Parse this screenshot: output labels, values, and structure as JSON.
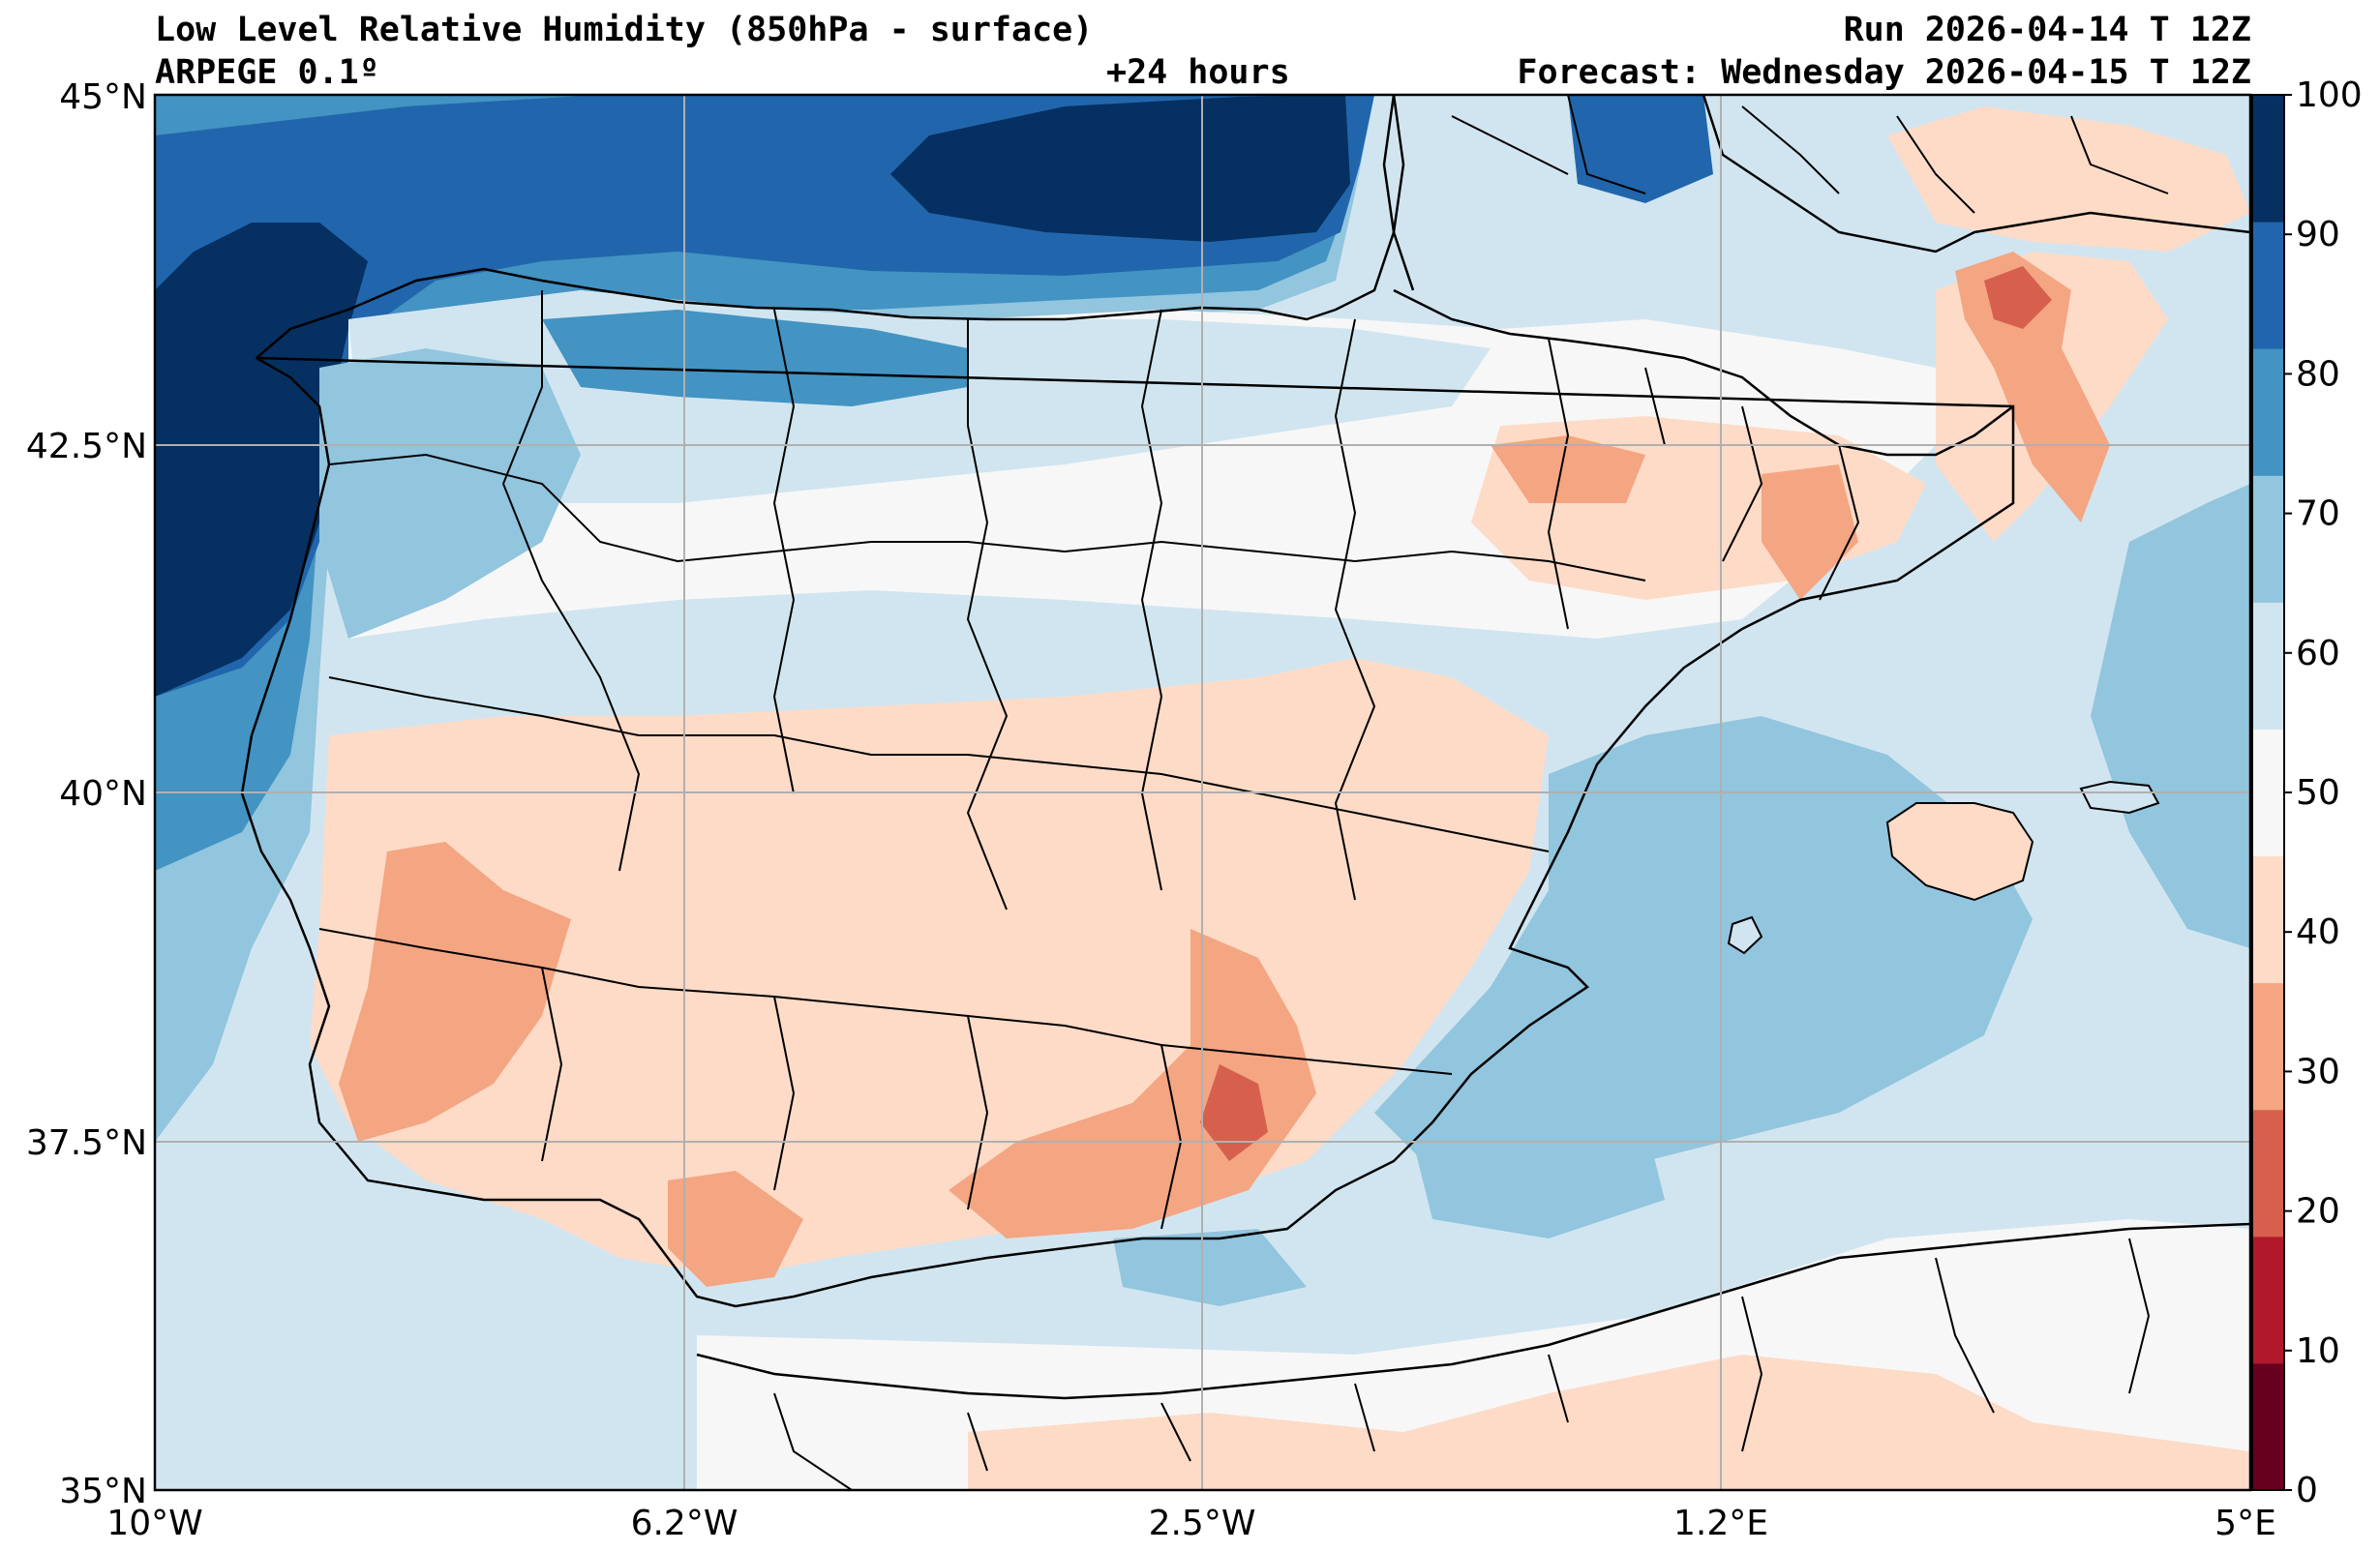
{
  "header": {
    "title": "Low Level Relative Humidity (850hPa - surface)",
    "model": "ARPEGE 0.1º",
    "lead_time": "+24 hours",
    "run": "Run 2026-04-14 T 12Z",
    "forecast": "Forecast: Wednesday 2026-04-15 T 12Z"
  },
  "map": {
    "lat_labels": [
      "45°N",
      "42.5°N",
      "40°N",
      "37.5°N",
      "35°N"
    ],
    "lon_labels": [
      "10°W",
      "6.2°W",
      "2.5°W",
      "1.2°E",
      "5°E"
    ]
  },
  "colorbar": {
    "levels": [
      "0",
      "10",
      "20",
      "30",
      "40",
      "50",
      "60",
      "70",
      "80",
      "90",
      "100"
    ],
    "colors": [
      "#67001f",
      "#b2182b",
      "#d6604d",
      "#f4a582",
      "#fddbc7",
      "#f7f7f7",
      "#d1e5f0",
      "#92c5de",
      "#4393c3",
      "#2166ac",
      "#053061"
    ]
  }
}
